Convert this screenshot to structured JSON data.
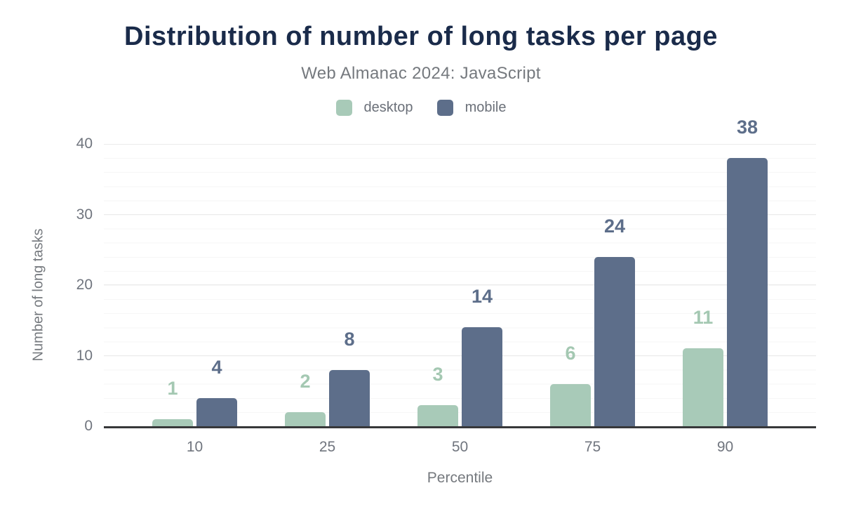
{
  "title": "Distribution of number of long tasks per page",
  "subtitle": "Web Almanac 2024: JavaScript",
  "legend": {
    "items": [
      {
        "label": "desktop"
      },
      {
        "label": "mobile"
      }
    ]
  },
  "chart_data": {
    "type": "bar",
    "title": "Distribution of number of long tasks per page",
    "subtitle": "Web Almanac 2024: JavaScript",
    "categories": [
      "10",
      "25",
      "50",
      "75",
      "90"
    ],
    "series": [
      {
        "name": "desktop",
        "values": [
          1,
          2,
          3,
          6,
          11
        ],
        "color": "#a8cab8",
        "label_color": "#a4c8b2"
      },
      {
        "name": "mobile",
        "values": [
          4,
          8,
          14,
          24,
          38
        ],
        "color": "#5d6e8a",
        "label_color": "#5d6e8a"
      }
    ],
    "xlabel": "Percentile",
    "ylabel": "Number of long tasks",
    "ylim": [
      0,
      40
    ],
    "yticks": [
      0,
      10,
      20,
      30,
      40
    ],
    "grid": "horizontal major every 10, minor every 2",
    "legend_position": "top",
    "data_labels": true
  },
  "colors": {
    "title_text": "#1a2b4a",
    "muted_text": "#75797e",
    "tick_text": "#70757e",
    "axis_line": "#37383a",
    "gridline_major": "#ebebeb",
    "gridline_minor": "#f6f6f6",
    "desktop": "#a8cab8",
    "mobile": "#5d6e8a"
  }
}
